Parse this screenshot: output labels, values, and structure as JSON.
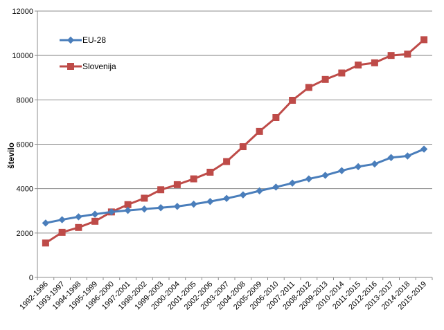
{
  "chart_data": {
    "type": "line",
    "title": "",
    "xlabel": "",
    "ylabel": "število",
    "ylim": [
      0,
      12000
    ],
    "yticks": [
      0,
      2000,
      4000,
      6000,
      8000,
      10000,
      12000
    ],
    "grid": true,
    "legend_position": "top-left",
    "categories": [
      "1992-1996",
      "1993-1997",
      "1994-1998",
      "1995-1999",
      "1996-2000",
      "1997-2001",
      "1998-2002",
      "1999-2003",
      "2000-2004",
      "2001-2005",
      "2002-2006",
      "2003-2007",
      "2004-2008",
      "2005-2009",
      "2006-2010",
      "2007-2011",
      "2008-2012",
      "2009-2013",
      "2010-2014",
      "2011-2015",
      "2012-2016",
      "2013-2017",
      "2014-2018",
      "2015-2019"
    ],
    "series": [
      {
        "name": "EU-28",
        "color": "#4a7ebb",
        "marker": "diamond",
        "values": [
          2450,
          2600,
          2730,
          2850,
          2950,
          3020,
          3080,
          3140,
          3200,
          3300,
          3420,
          3560,
          3720,
          3900,
          4070,
          4250,
          4440,
          4600,
          4810,
          4990,
          5110,
          5400,
          5470,
          5780
        ]
      },
      {
        "name": "Slovenija",
        "color": "#be4b48",
        "marker": "square",
        "values": [
          1550,
          2030,
          2250,
          2530,
          2950,
          3280,
          3570,
          3950,
          4180,
          4440,
          4740,
          5220,
          5890,
          6580,
          7200,
          7980,
          8560,
          8920,
          9210,
          9570,
          9670,
          10000,
          10060,
          10710
        ]
      }
    ]
  }
}
